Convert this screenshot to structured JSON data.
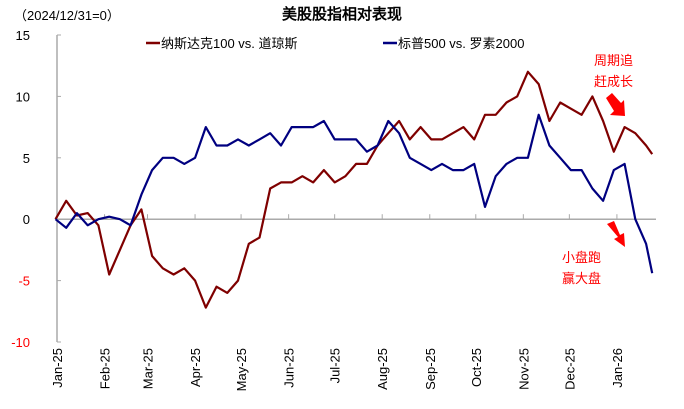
{
  "chart_data": {
    "type": "line",
    "title": "美股股指相对表现",
    "subtitle": "（2024/12/31=0）",
    "ylim": [
      -10,
      15
    ],
    "yticks": [
      15,
      10,
      5,
      0,
      -5,
      -10
    ],
    "xtick_labels": [
      "Jan-25",
      "Feb-25",
      "Mar-25",
      "Apr-25",
      "May-25",
      "Jun-25",
      "Jul-25",
      "Aug-25",
      "Sep-25",
      "Oct-25",
      "Nov-25",
      "Dec-25",
      "Jan-26"
    ],
    "xtick_dates": [
      "2025-01-01",
      "2025-02-01",
      "2025-03-01",
      "2025-04-01",
      "2025-05-01",
      "2025-06-01",
      "2025-07-01",
      "2025-08-01",
      "2025-09-01",
      "2025-10-01",
      "2025-11-01",
      "2025-12-01",
      "2026-01-01"
    ],
    "grid": false,
    "legend_placement": "top",
    "negative_tick_color": "#ff0000",
    "x": [
      "2024-12-31",
      "2025-01-07",
      "2025-01-14",
      "2025-01-21",
      "2025-01-28",
      "2025-02-04",
      "2025-02-11",
      "2025-02-18",
      "2025-02-25",
      "2025-03-04",
      "2025-03-11",
      "2025-03-18",
      "2025-03-25",
      "2025-04-01",
      "2025-04-08",
      "2025-04-15",
      "2025-04-22",
      "2025-04-29",
      "2025-05-06",
      "2025-05-13",
      "2025-05-20",
      "2025-05-27",
      "2025-06-03",
      "2025-06-10",
      "2025-06-17",
      "2025-06-24",
      "2025-07-01",
      "2025-07-08",
      "2025-07-15",
      "2025-07-22",
      "2025-07-29",
      "2025-08-05",
      "2025-08-12",
      "2025-08-19",
      "2025-08-26",
      "2025-09-02",
      "2025-09-09",
      "2025-09-16",
      "2025-09-23",
      "2025-09-30",
      "2025-10-07",
      "2025-10-14",
      "2025-10-21",
      "2025-10-28",
      "2025-11-04",
      "2025-11-11",
      "2025-11-18",
      "2025-11-25",
      "2025-12-02",
      "2025-12-09",
      "2025-12-16",
      "2025-12-23",
      "2025-12-30",
      "2026-01-06",
      "2026-01-13",
      "2026-01-20",
      "2026-01-24"
    ],
    "series": [
      {
        "name": "纳斯达克100 vs. 道琼斯",
        "color": "#7f0000",
        "values": [
          0,
          1.5,
          0.3,
          0.5,
          -0.5,
          -4.5,
          -2.5,
          -0.5,
          0.8,
          -3,
          -4,
          -4.5,
          -4,
          -5,
          -7.2,
          -5.5,
          -6,
          -5,
          -2,
          -1.5,
          2.5,
          3,
          3,
          3.5,
          3,
          4,
          3,
          3.5,
          4.5,
          4.5,
          6,
          7,
          8,
          6.5,
          7.5,
          6.5,
          6.5,
          7,
          7.5,
          6.5,
          8.5,
          8.5,
          9.5,
          10,
          12,
          11,
          8,
          9.5,
          9,
          8.5,
          10,
          8,
          5.5,
          7.5,
          7,
          6,
          5.3
        ]
      },
      {
        "name": "标普500 vs. 罗素2000",
        "color": "#000080",
        "values": [
          0,
          -0.7,
          0.5,
          -0.5,
          0,
          0.2,
          0,
          -0.5,
          2,
          4,
          5,
          5,
          4.5,
          5,
          7.5,
          6,
          6,
          6.5,
          6,
          6.5,
          7,
          6,
          7.5,
          7.5,
          7.5,
          8,
          6.5,
          6.5,
          6.5,
          5.5,
          6,
          8,
          7,
          5,
          4.5,
          4,
          4.5,
          4,
          4,
          4.5,
          1,
          3.5,
          4.5,
          5,
          5,
          8.5,
          6,
          5,
          4,
          4,
          2.5,
          1.5,
          4,
          4.5,
          0,
          -2,
          -4.4
        ]
      }
    ],
    "annotations": [
      {
        "text_lines": [
          "周期追",
          "赶成长"
        ],
        "color": "#ff0000"
      },
      {
        "text_lines": [
          "小盘跑",
          "赢大盘"
        ],
        "color": "#ff0000"
      }
    ]
  }
}
